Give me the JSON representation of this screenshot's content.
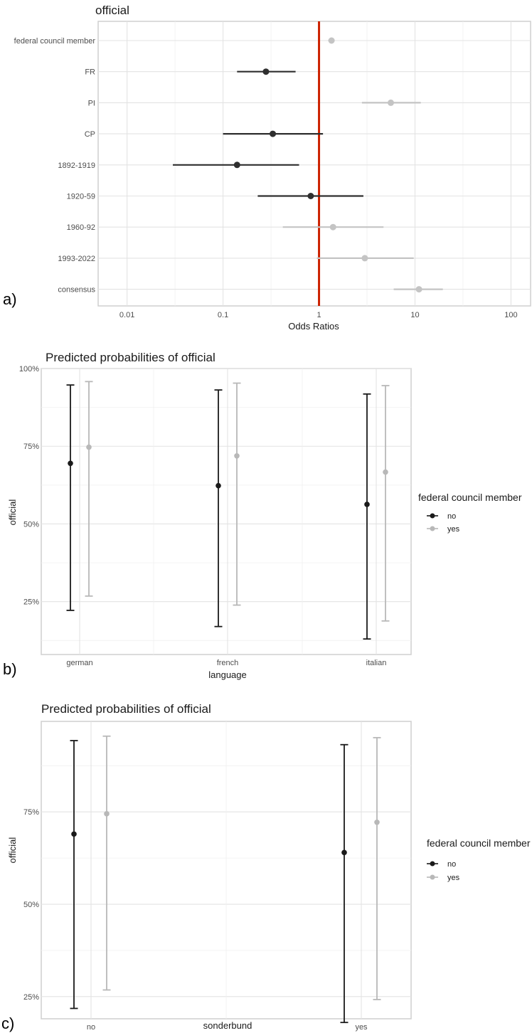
{
  "panel_labels": [
    "a)",
    "b)",
    "c)"
  ],
  "colors": {
    "dark": "#1a1a1a",
    "light": "#b8b8b8",
    "reference": "#cc2200"
  },
  "chart_data": [
    {
      "type": "forest",
      "title": "official",
      "xlabel": "Odds Ratios",
      "ylabel": "",
      "xscale": "log",
      "xlim": [
        0.005,
        160
      ],
      "xticks": [
        0.01,
        0.1,
        1,
        10,
        100
      ],
      "xtick_labels": [
        "0.01",
        "0.1",
        "1",
        "10",
        "100"
      ],
      "reference_line": 1,
      "grid": true,
      "terms": [
        {
          "label": "federal council member",
          "estimate": 1.35,
          "low": 1.25,
          "high": 1.45,
          "significant": false
        },
        {
          "label": "FR",
          "estimate": 0.28,
          "low": 0.14,
          "high": 0.57,
          "significant": true
        },
        {
          "label": "PI",
          "estimate": 5.6,
          "low": 2.8,
          "high": 11.5,
          "significant": false
        },
        {
          "label": "CP",
          "estimate": 0.33,
          "low": 0.1,
          "high": 1.1,
          "significant": true
        },
        {
          "label": "1892-1919",
          "estimate": 0.14,
          "low": 0.03,
          "high": 0.62,
          "significant": true
        },
        {
          "label": "1920-59",
          "estimate": 0.82,
          "low": 0.23,
          "high": 2.9,
          "significant": true
        },
        {
          "label": "1960-92",
          "estimate": 1.4,
          "low": 0.42,
          "high": 4.7,
          "significant": false
        },
        {
          "label": "1993-2022",
          "estimate": 3.0,
          "low": 0.95,
          "high": 9.7,
          "significant": false
        },
        {
          "label": "consensus",
          "estimate": 11.0,
          "low": 6.0,
          "high": 19.5,
          "significant": false
        }
      ]
    },
    {
      "type": "pointrange",
      "title": "Predicted probabilities of official",
      "xlabel": "language",
      "ylabel": "official",
      "ylim": [
        0.08,
        1.0
      ],
      "yticks": [
        0.25,
        0.5,
        0.75,
        1.0
      ],
      "ytick_labels": [
        "25%",
        "50%",
        "75%",
        "100%"
      ],
      "categories": [
        "german",
        "french",
        "italian"
      ],
      "legend": {
        "title": "federal council member",
        "position": "right",
        "entries": [
          "no",
          "yes"
        ]
      },
      "series": [
        {
          "name": "no",
          "values": [
            0.695,
            0.623,
            0.563
          ],
          "low": [
            0.222,
            0.17,
            0.13
          ],
          "high": [
            0.947,
            0.931,
            0.918
          ]
        },
        {
          "name": "yes",
          "values": [
            0.747,
            0.719,
            0.667
          ],
          "low": [
            0.268,
            0.239,
            0.188
          ],
          "high": [
            0.958,
            0.953,
            0.945
          ]
        }
      ]
    },
    {
      "type": "pointrange",
      "title": "Predicted probabilities of official",
      "xlabel": "sonderbund",
      "ylabel": "official",
      "ylim": [
        0.19,
        0.995
      ],
      "yticks": [
        0.25,
        0.5,
        0.75
      ],
      "ytick_labels": [
        "25%",
        "50%",
        "75%"
      ],
      "categories": [
        "no",
        "yes"
      ],
      "legend": {
        "title": "federal council member",
        "position": "right",
        "entries": [
          "no",
          "yes"
        ]
      },
      "series": [
        {
          "name": "no",
          "values": [
            0.69,
            0.64
          ],
          "low": [
            0.218,
            0.18
          ],
          "high": [
            0.943,
            0.932
          ]
        },
        {
          "name": "yes",
          "values": [
            0.745,
            0.722
          ],
          "low": [
            0.268,
            0.242
          ],
          "high": [
            0.955,
            0.951
          ]
        }
      ]
    }
  ]
}
